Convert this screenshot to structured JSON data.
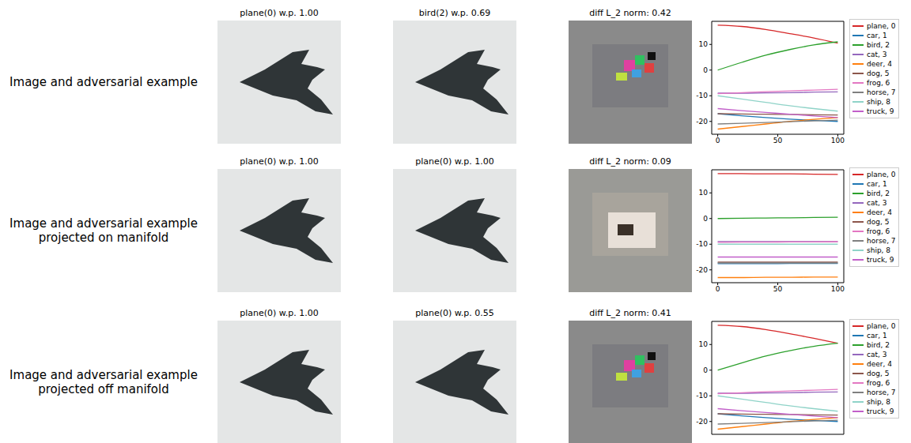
{
  "rows": [
    {
      "label": "Image and adversarial example",
      "image_title": "plane(0) w.p. 1.00",
      "adversarial_title": "bird(2) w.p. 0.69",
      "diff_title": "diff L_2 norm: 0.42"
    },
    {
      "label": "Image and adversarial example\nprojected on manifold",
      "image_title": "plane(0) w.p. 1.00",
      "adversarial_title": "plane(0) w.p. 1.00",
      "diff_title": "diff L_2 norm: 0.09"
    },
    {
      "label": "Image and adversarial example\nprojected off manifold",
      "image_title": "plane(0) w.p. 1.00",
      "adversarial_title": "plane(0) w.p. 0.55",
      "diff_title": "diff L_2 norm: 0.41"
    }
  ],
  "chart_data": [
    {
      "type": "line",
      "x": [
        0,
        20,
        40,
        60,
        80,
        100
      ],
      "xlim": [
        -5,
        105
      ],
      "xticks": [
        0,
        50,
        100
      ],
      "ylim": [
        -25,
        19
      ],
      "yticks": [
        -20,
        -10,
        0,
        10
      ],
      "legend": "right",
      "series": [
        {
          "name": "plane, 0",
          "color": "#d62728",
          "values": [
            17.5,
            17,
            15.8,
            14.2,
            12.5,
            10.5
          ]
        },
        {
          "name": "car, 1",
          "color": "#1f77b4",
          "values": [
            -17,
            -17.8,
            -18.5,
            -19.1,
            -19.6,
            -20
          ]
        },
        {
          "name": "bird, 2",
          "color": "#2ca02c",
          "values": [
            0,
            3,
            5.8,
            8,
            9.8,
            11
          ]
        },
        {
          "name": "cat, 3",
          "color": "#9467bd",
          "values": [
            -9,
            -9,
            -8.9,
            -8.8,
            -8.6,
            -8.5
          ]
        },
        {
          "name": "deer, 4",
          "color": "#ff7f0e",
          "values": [
            -23,
            -22,
            -21,
            -20,
            -19.2,
            -18.5
          ]
        },
        {
          "name": "dog, 5",
          "color": "#8c564b",
          "values": [
            -17,
            -17.1,
            -17.2,
            -17.3,
            -17.4,
            -17.5
          ]
        },
        {
          "name": "frog, 6",
          "color": "#e377c2",
          "values": [
            -9.2,
            -8.8,
            -8.4,
            -8.1,
            -7.8,
            -7.5
          ]
        },
        {
          "name": "horse, 7",
          "color": "#7f7f7f",
          "values": [
            -21,
            -20.7,
            -20.4,
            -20.1,
            -19.8,
            -19.5
          ]
        },
        {
          "name": "ship, 8",
          "color": "#8fd3c8",
          "values": [
            -10,
            -11.3,
            -12.6,
            -13.9,
            -15,
            -16
          ]
        },
        {
          "name": "truck, 9",
          "color": "#c25fc9",
          "values": [
            -15,
            -15.8,
            -16.5,
            -17.2,
            -17.9,
            -18.5
          ]
        }
      ]
    },
    {
      "type": "line",
      "x": [
        0,
        20,
        40,
        60,
        80,
        100
      ],
      "xlim": [
        -5,
        105
      ],
      "xticks": [
        0,
        50,
        100
      ],
      "ylim": [
        -25,
        19
      ],
      "yticks": [
        -20,
        -10,
        0,
        10
      ],
      "legend": "right",
      "series": [
        {
          "name": "plane, 0",
          "color": "#d62728",
          "values": [
            17.5,
            17.5,
            17.4,
            17.4,
            17.3,
            17.2
          ]
        },
        {
          "name": "car, 1",
          "color": "#1f77b4",
          "values": [
            -17.6,
            -17.6,
            -17.6,
            -17.5,
            -17.5,
            -17.5
          ]
        },
        {
          "name": "bird, 2",
          "color": "#2ca02c",
          "values": [
            0,
            0.1,
            0.2,
            0.3,
            0.4,
            0.5
          ]
        },
        {
          "name": "cat, 3",
          "color": "#9467bd",
          "values": [
            -9,
            -9,
            -9,
            -9,
            -9,
            -9
          ]
        },
        {
          "name": "deer, 4",
          "color": "#ff7f0e",
          "values": [
            -23,
            -23,
            -22.9,
            -22.9,
            -22.8,
            -22.8
          ]
        },
        {
          "name": "dog, 5",
          "color": "#8c564b",
          "values": [
            -17,
            -17,
            -17,
            -17,
            -17,
            -17
          ]
        },
        {
          "name": "frog, 6",
          "color": "#e377c2",
          "values": [
            -9.3,
            -9.2,
            -9.2,
            -9.1,
            -9.1,
            -9
          ]
        },
        {
          "name": "horse, 7",
          "color": "#7f7f7f",
          "values": [
            -17.3,
            -17.3,
            -17.3,
            -17.3,
            -17.3,
            -17.3
          ]
        },
        {
          "name": "ship, 8",
          "color": "#8fd3c8",
          "values": [
            -10,
            -10,
            -10,
            -10,
            -10,
            -10
          ]
        },
        {
          "name": "truck, 9",
          "color": "#c25fc9",
          "values": [
            -15,
            -15,
            -15,
            -15,
            -15,
            -15
          ]
        }
      ]
    },
    {
      "type": "line",
      "x": [
        0,
        20,
        40,
        60,
        80,
        100
      ],
      "xlim": [
        -5,
        105
      ],
      "xticks": [
        0,
        50,
        100
      ],
      "ylim": [
        -25,
        19
      ],
      "yticks": [
        -20,
        -10,
        0,
        10
      ],
      "legend": "right",
      "tick_labels": "y",
      "series": [
        {
          "name": "plane, 0",
          "color": "#d62728",
          "values": [
            17.5,
            17,
            15.8,
            14.2,
            12.4,
            10.5
          ]
        },
        {
          "name": "car, 1",
          "color": "#1f77b4",
          "values": [
            -17,
            -17.8,
            -18.5,
            -19.1,
            -19.6,
            -20
          ]
        },
        {
          "name": "bird, 2",
          "color": "#2ca02c",
          "values": [
            0,
            2.8,
            5.5,
            7.6,
            9.3,
            10.5
          ]
        },
        {
          "name": "cat, 3",
          "color": "#9467bd",
          "values": [
            -9,
            -9,
            -8.9,
            -8.8,
            -8.6,
            -8.5
          ]
        },
        {
          "name": "deer, 4",
          "color": "#ff7f0e",
          "values": [
            -23,
            -22,
            -21,
            -20,
            -19.2,
            -18.5
          ]
        },
        {
          "name": "dog, 5",
          "color": "#8c564b",
          "values": [
            -17,
            -17.1,
            -17.2,
            -17.3,
            -17.4,
            -17.5
          ]
        },
        {
          "name": "frog, 6",
          "color": "#e377c2",
          "values": [
            -9.2,
            -8.8,
            -8.4,
            -8.1,
            -7.8,
            -7.5
          ]
        },
        {
          "name": "horse, 7",
          "color": "#7f7f7f",
          "values": [
            -21,
            -20.7,
            -20.4,
            -20.1,
            -19.8,
            -19.5
          ]
        },
        {
          "name": "ship, 8",
          "color": "#8fd3c8",
          "values": [
            -10,
            -11.3,
            -12.6,
            -13.9,
            -15,
            -16
          ]
        },
        {
          "name": "truck, 9",
          "color": "#c25fc9",
          "values": [
            -15,
            -15.8,
            -16.5,
            -17.2,
            -17.9,
            -18.5
          ]
        }
      ]
    }
  ]
}
